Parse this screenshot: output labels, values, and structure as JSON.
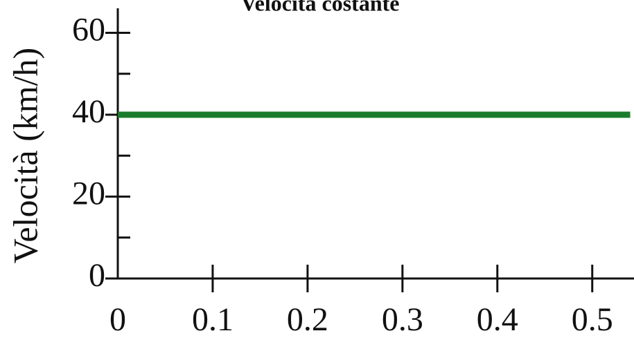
{
  "chart_data": {
    "type": "line",
    "title": "Velocità costante",
    "y_label": "Velocità (km/h)",
    "x": [
      0,
      0.54
    ],
    "series": [
      {
        "name": "Velocità",
        "color": "#1b7b2c",
        "values": [
          40,
          40
        ]
      }
    ],
    "xlim": [
      0,
      0.544
    ],
    "ylim": [
      0,
      66
    ],
    "xticks": [
      0,
      0.1,
      0.2,
      0.3,
      0.4,
      0.5
    ],
    "yticks": [
      0,
      20,
      40,
      60
    ],
    "yminor_ticks": [
      10,
      30,
      50
    ]
  }
}
